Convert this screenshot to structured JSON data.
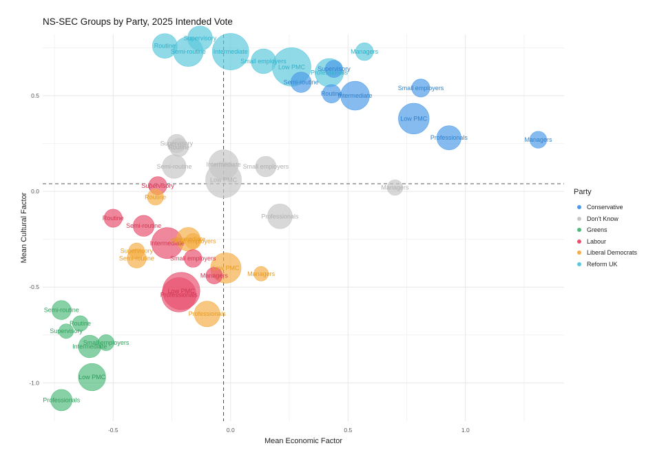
{
  "chart_data": {
    "type": "scatter",
    "title": "NS-SEC Groups by Party, 2025 Intended Vote",
    "xlabel": "Mean Economic Factor",
    "ylabel": "Mean Cultural Factor",
    "xlim": [
      -0.8,
      1.42
    ],
    "ylim": [
      -1.2,
      0.82
    ],
    "x_ticks": [
      -0.5,
      0.0,
      0.5,
      1.0
    ],
    "x_tick_labels": [
      "-0.5",
      "0.0",
      "0.5",
      "1.0"
    ],
    "y_ticks": [
      -1.0,
      -0.5,
      0.0,
      0.5
    ],
    "y_tick_labels": [
      "-1.0",
      "-0.5",
      "0.0",
      "0.5"
    ],
    "reference_lines": {
      "vertical_x": -0.03,
      "horizontal_y": 0.04
    },
    "legend": {
      "title": "Party",
      "position": "right"
    },
    "series": [
      {
        "name": "Conservative",
        "color": "#4C9BE8",
        "label_color": "#2F7FC8",
        "points": [
          {
            "label": "Managers",
            "x": 1.31,
            "y": 0.27,
            "size": 0.12
          },
          {
            "label": "Small employers",
            "x": 0.81,
            "y": 0.54,
            "size": 0.15
          },
          {
            "label": "Low PMC",
            "x": 0.78,
            "y": 0.38,
            "size": 0.68
          },
          {
            "label": "Professionals",
            "x": 0.93,
            "y": 0.28,
            "size": 0.36
          },
          {
            "label": "Intermediate",
            "x": 0.53,
            "y": 0.5,
            "size": 0.58
          },
          {
            "label": "Supervisory",
            "x": 0.44,
            "y": 0.64,
            "size": 0.13
          },
          {
            "label": "Routine",
            "x": 0.43,
            "y": 0.51,
            "size": 0.16
          },
          {
            "label": "Semi-routine",
            "x": 0.3,
            "y": 0.57,
            "size": 0.22
          }
        ]
      },
      {
        "name": "Don't Know",
        "color": "#C6C6C6",
        "label_color": "#AEAEAE",
        "points": [
          {
            "label": "Managers",
            "x": 0.7,
            "y": 0.02,
            "size": 0.09
          },
          {
            "label": "Professionals",
            "x": 0.21,
            "y": -0.13,
            "size": 0.38
          },
          {
            "label": "Small employers",
            "x": 0.15,
            "y": 0.13,
            "size": 0.22
          },
          {
            "label": "Intermediate",
            "x": -0.03,
            "y": 0.14,
            "size": 0.62
          },
          {
            "label": "Low PMC",
            "x": -0.03,
            "y": 0.06,
            "size": 1.0
          },
          {
            "label": "Supervisory",
            "x": -0.23,
            "y": 0.25,
            "size": 0.16
          },
          {
            "label": "Routine",
            "x": -0.22,
            "y": 0.23,
            "size": 0.16
          },
          {
            "label": "Semi-routine",
            "x": -0.24,
            "y": 0.13,
            "size": 0.34
          }
        ]
      },
      {
        "name": "Greens",
        "color": "#4FBA7B",
        "label_color": "#2E9E5A",
        "points": [
          {
            "label": "Semi-routine",
            "x": -0.72,
            "y": -0.62,
            "size": 0.18
          },
          {
            "label": "Routine",
            "x": -0.64,
            "y": -0.69,
            "size": 0.09
          },
          {
            "label": "Supervisory",
            "x": -0.7,
            "y": -0.73,
            "size": 0.07
          },
          {
            "label": "Small employers",
            "x": -0.53,
            "y": -0.79,
            "size": 0.1
          },
          {
            "label": "Intermediate",
            "x": -0.6,
            "y": -0.81,
            "size": 0.29
          },
          {
            "label": "Low PMC",
            "x": -0.59,
            "y": -0.97,
            "size": 0.5
          },
          {
            "label": "Professionals",
            "x": -0.72,
            "y": -1.09,
            "size": 0.25
          }
        ]
      },
      {
        "name": "Labour",
        "color": "#E8506E",
        "label_color": "#D0344F",
        "points": [
          {
            "label": "Routine",
            "x": -0.5,
            "y": -0.14,
            "size": 0.15
          },
          {
            "label": "Supervisory",
            "x": -0.31,
            "y": 0.03,
            "size": 0.15
          },
          {
            "label": "Semi-routine",
            "x": -0.37,
            "y": -0.18,
            "size": 0.24
          },
          {
            "label": "Intermediate",
            "x": -0.27,
            "y": -0.27,
            "size": 0.7
          },
          {
            "label": "Small employers",
            "x": -0.16,
            "y": -0.35,
            "size": 0.14
          },
          {
            "label": "Managers",
            "x": -0.07,
            "y": -0.44,
            "size": 0.11
          },
          {
            "label": "Low PMC",
            "x": -0.21,
            "y": -0.52,
            "size": 1.1
          },
          {
            "label": "Professionals",
            "x": -0.22,
            "y": -0.54,
            "size": 0.9
          }
        ]
      },
      {
        "name": "Liberal Democrats",
        "color": "#F5AE47",
        "label_color": "#E69A22",
        "points": [
          {
            "label": "Routine",
            "x": -0.32,
            "y": -0.03,
            "size": 0.1
          },
          {
            "label": "Intermediate",
            "x": -0.18,
            "y": -0.25,
            "size": 0.34
          },
          {
            "label": "Small employers",
            "x": -0.16,
            "y": -0.26,
            "size": 0.09
          },
          {
            "label": "Supervisory",
            "x": -0.4,
            "y": -0.31,
            "size": 0.09
          },
          {
            "label": "Semi-routine",
            "x": -0.4,
            "y": -0.35,
            "size": 0.18
          },
          {
            "label": "Low PMC",
            "x": -0.02,
            "y": -0.4,
            "size": 0.66
          },
          {
            "label": "Managers",
            "x": 0.13,
            "y": -0.43,
            "size": 0.07
          },
          {
            "label": "Professionals",
            "x": -0.1,
            "y": -0.64,
            "size": 0.42
          }
        ]
      },
      {
        "name": "Reform UK",
        "color": "#5BC8DC",
        "label_color": "#2EAFC8",
        "points": [
          {
            "label": "Routine",
            "x": -0.28,
            "y": 0.76,
            "size": 0.38
          },
          {
            "label": "Supervisory",
            "x": -0.13,
            "y": 0.8,
            "size": 0.38
          },
          {
            "label": "Semi-routine",
            "x": -0.18,
            "y": 0.73,
            "size": 0.62
          },
          {
            "label": "Intermediate",
            "x": 0.0,
            "y": 0.73,
            "size": 1.05
          },
          {
            "label": "Small employers",
            "x": 0.14,
            "y": 0.68,
            "size": 0.38
          },
          {
            "label": "Managers",
            "x": 0.57,
            "y": 0.73,
            "size": 0.14
          },
          {
            "label": "Low PMC",
            "x": 0.26,
            "y": 0.65,
            "size": 1.2
          },
          {
            "label": "Professionals",
            "x": 0.42,
            "y": 0.62,
            "size": 0.55
          }
        ]
      }
    ]
  }
}
